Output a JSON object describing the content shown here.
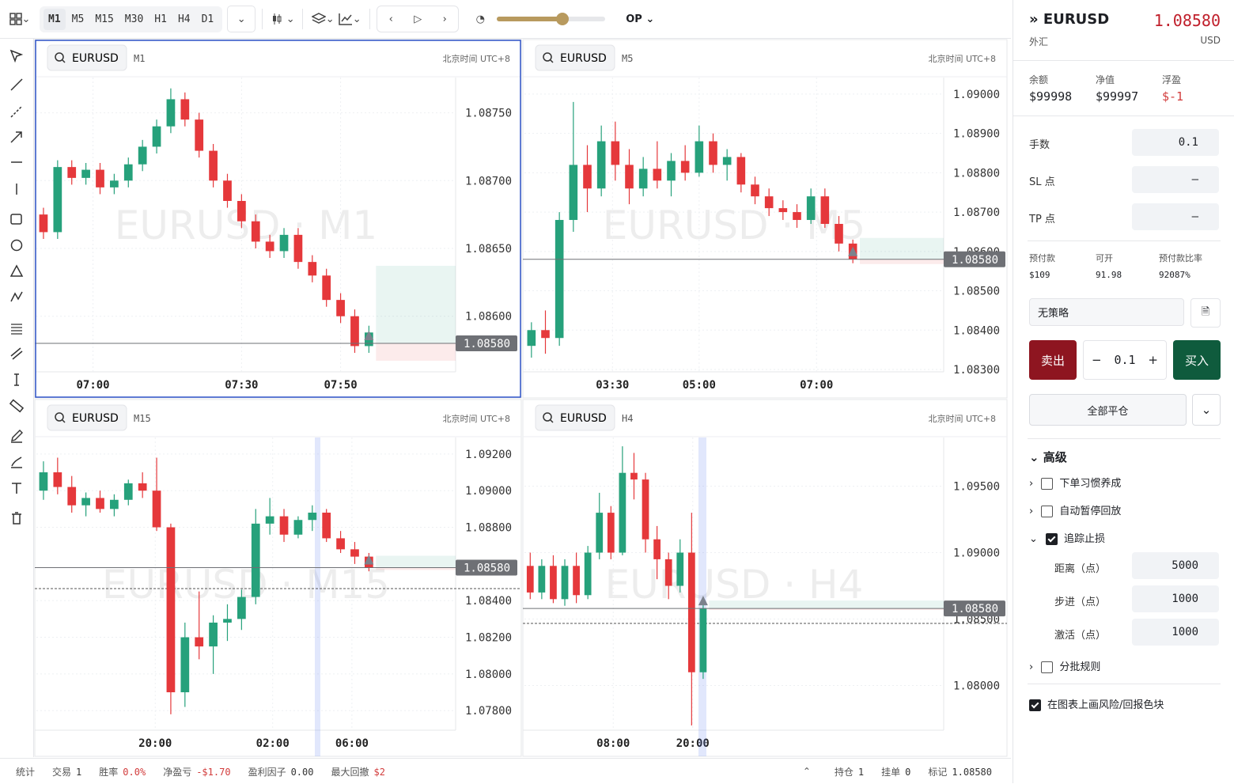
{
  "toolbar": {
    "timeframes": [
      "M1",
      "M5",
      "M15",
      "M30",
      "H1",
      "H4",
      "D1"
    ],
    "active": "M1",
    "speed_label": "OP"
  },
  "chart_data": [
    {
      "type": "candlestick",
      "active": true,
      "symbol": "EURUSD",
      "timeframe": "M1",
      "timezone": "北京时间 UTC+8",
      "watermark": "EURUSD · M1",
      "ylim": [
        1.08559,
        1.08776
      ],
      "yticks": [
        {
          "value": 1.0875,
          "label": "1.08750"
        },
        {
          "value": 1.087,
          "label": "1.08700"
        },
        {
          "value": 1.0865,
          "label": "1.08650"
        },
        {
          "value": 1.086,
          "label": "1.08600"
        }
      ],
      "xticks": [
        {
          "value": 3.5,
          "label": "07:00"
        },
        {
          "value": 14,
          "label": "07:30"
        },
        {
          "value": 21,
          "label": "07:50"
        }
      ],
      "price_line": {
        "value": 1.0858,
        "label": "1.08580"
      },
      "up_color": "#26a17b",
      "down_color": "#e5383b",
      "candles": [
        [
          1.08675,
          1.0868,
          1.08657,
          1.08662
        ],
        [
          1.08662,
          1.08715,
          1.08657,
          1.0871
        ],
        [
          1.0871,
          1.08715,
          1.08697,
          1.08702
        ],
        [
          1.08702,
          1.08713,
          1.08697,
          1.08708
        ],
        [
          1.08708,
          1.08713,
          1.0869,
          1.08695
        ],
        [
          1.08695,
          1.08705,
          1.0869,
          1.087
        ],
        [
          1.087,
          1.08717,
          1.08695,
          1.08712
        ],
        [
          1.08712,
          1.0873,
          1.08707,
          1.08725
        ],
        [
          1.08725,
          1.08745,
          1.0872,
          1.0874
        ],
        [
          1.0874,
          1.08768,
          1.08735,
          1.0876
        ],
        [
          1.0876,
          1.08765,
          1.0874,
          1.08745
        ],
        [
          1.08745,
          1.0875,
          1.08717,
          1.08722
        ],
        [
          1.08722,
          1.08727,
          1.08695,
          1.087
        ],
        [
          1.087,
          1.08705,
          1.0868,
          1.08685
        ],
        [
          1.08685,
          1.0869,
          1.08665,
          1.0867
        ],
        [
          1.0867,
          1.08675,
          1.0865,
          1.08655
        ],
        [
          1.08655,
          1.0866,
          1.08643,
          1.08648
        ],
        [
          1.08648,
          1.08665,
          1.08643,
          1.0866
        ],
        [
          1.0866,
          1.08665,
          1.08635,
          1.0864
        ],
        [
          1.0864,
          1.08645,
          1.08625,
          1.0863
        ],
        [
          1.0863,
          1.08635,
          1.08607,
          1.08612
        ],
        [
          1.08612,
          1.08617,
          1.08595,
          1.086
        ],
        [
          1.086,
          1.08605,
          1.08573,
          1.08578
        ],
        [
          1.08578,
          1.08593,
          1.08573,
          1.08588
        ]
      ]
    },
    {
      "type": "candlestick",
      "active": false,
      "symbol": "EURUSD",
      "timeframe": "M5",
      "timezone": "北京时间 UTC+8",
      "watermark": "EURUSD · M5",
      "ylim": [
        1.08294,
        1.09042
      ],
      "yticks": [
        {
          "value": 1.09,
          "label": "1.09000"
        },
        {
          "value": 1.089,
          "label": "1.08900"
        },
        {
          "value": 1.088,
          "label": "1.08800"
        },
        {
          "value": 1.087,
          "label": "1.08700"
        },
        {
          "value": 1.086,
          "label": "1.08600"
        },
        {
          "value": 1.085,
          "label": "1.08500"
        },
        {
          "value": 1.084,
          "label": "1.08400"
        },
        {
          "value": 1.083,
          "label": "1.08300"
        }
      ],
      "xticks": [
        {
          "value": 5.8,
          "label": "03:30"
        },
        {
          "value": 12,
          "label": "05:00"
        },
        {
          "value": 20.4,
          "label": "07:00"
        }
      ],
      "price_line": {
        "value": 1.0858,
        "label": "1.08580"
      },
      "up_color": "#26a17b",
      "down_color": "#e5383b",
      "candles": [
        [
          1.0836,
          1.0842,
          1.0833,
          1.084
        ],
        [
          1.084,
          1.0845,
          1.0834,
          1.0838
        ],
        [
          1.0838,
          1.087,
          1.0836,
          1.0868
        ],
        [
          1.0868,
          1.0898,
          1.0865,
          1.0882
        ],
        [
          1.0882,
          1.0887,
          1.087,
          1.0876
        ],
        [
          1.0876,
          1.0892,
          1.0874,
          1.0888
        ],
        [
          1.0888,
          1.0893,
          1.0878,
          1.0882
        ],
        [
          1.0882,
          1.0886,
          1.0872,
          1.0876
        ],
        [
          1.0876,
          1.0884,
          1.0874,
          1.0881
        ],
        [
          1.0881,
          1.0888,
          1.0876,
          1.0878
        ],
        [
          1.0878,
          1.0885,
          1.0874,
          1.0883
        ],
        [
          1.0883,
          1.0887,
          1.0878,
          1.088
        ],
        [
          1.088,
          1.0892,
          1.0879,
          1.0888
        ],
        [
          1.0888,
          1.089,
          1.088,
          1.0882
        ],
        [
          1.0882,
          1.0886,
          1.0878,
          1.0884
        ],
        [
          1.0884,
          1.0885,
          1.0875,
          1.0877
        ],
        [
          1.0877,
          1.0879,
          1.0872,
          1.0874
        ],
        [
          1.0874,
          1.0876,
          1.0869,
          1.0871
        ],
        [
          1.0871,
          1.0873,
          1.0868,
          1.087
        ],
        [
          1.087,
          1.0872,
          1.0866,
          1.0868
        ],
        [
          1.0868,
          1.0876,
          1.0867,
          1.0874
        ],
        [
          1.0874,
          1.0876,
          1.0866,
          1.0867
        ],
        [
          1.0867,
          1.0869,
          1.086,
          1.0862
        ],
        [
          1.0862,
          1.0863,
          1.0857,
          1.0858
        ]
      ]
    },
    {
      "type": "candlestick",
      "active": false,
      "symbol": "EURUSD",
      "timeframe": "M15",
      "timezone": "北京时间 UTC+8",
      "watermark": "EURUSD · M15",
      "ylim": [
        1.07693,
        1.0929
      ],
      "yticks": [
        {
          "value": 1.092,
          "label": "1.09200"
        },
        {
          "value": 1.09,
          "label": "1.09000"
        },
        {
          "value": 1.088,
          "label": "1.08800"
        },
        {
          "value": 1.084,
          "label": "1.08400"
        },
        {
          "value": 1.082,
          "label": "1.08200"
        },
        {
          "value": 1.08,
          "label": "1.08000"
        },
        {
          "value": 1.078,
          "label": "1.07800"
        }
      ],
      "xticks": [
        {
          "value": 7.9,
          "label": "20:00"
        },
        {
          "value": 16.2,
          "label": "02:00"
        },
        {
          "value": 21.8,
          "label": "06:00"
        }
      ],
      "price_line": {
        "value": 1.0858,
        "label": "1.08580"
      },
      "up_color": "#26a17b",
      "down_color": "#e5383b",
      "candles": [
        [
          1.09,
          1.0916,
          1.0895,
          1.091
        ],
        [
          1.091,
          1.0918,
          1.0898,
          1.0902
        ],
        [
          1.0902,
          1.0908,
          1.0888,
          1.0892
        ],
        [
          1.0892,
          1.0899,
          1.0886,
          1.0896
        ],
        [
          1.0896,
          1.09,
          1.0888,
          1.089
        ],
        [
          1.089,
          1.0898,
          1.0886,
          1.0895
        ],
        [
          1.0895,
          1.0906,
          1.0892,
          1.0904
        ],
        [
          1.0904,
          1.091,
          1.0896,
          1.09
        ],
        [
          1.09,
          1.0918,
          1.0878,
          1.088
        ],
        [
          1.088,
          1.0882,
          1.0778,
          1.079
        ],
        [
          1.079,
          1.0828,
          1.0782,
          1.082
        ],
        [
          1.082,
          1.0845,
          1.0808,
          1.0815
        ],
        [
          1.0815,
          1.0832,
          1.08,
          1.0828
        ],
        [
          1.0828,
          1.0838,
          1.0818,
          1.083
        ],
        [
          1.083,
          1.0846,
          1.0824,
          1.0842
        ],
        [
          1.0842,
          1.089,
          1.0838,
          1.0882
        ],
        [
          1.0882,
          1.0896,
          1.0876,
          1.0886
        ],
        [
          1.0886,
          1.089,
          1.0872,
          1.0876
        ],
        [
          1.0876,
          1.0886,
          1.0874,
          1.0884
        ],
        [
          1.0884,
          1.0892,
          1.0878,
          1.0888
        ],
        [
          1.0888,
          1.089,
          1.0872,
          1.0874
        ],
        [
          1.0874,
          1.0878,
          1.0866,
          1.0868
        ],
        [
          1.0868,
          1.0872,
          1.086,
          1.0864
        ],
        [
          1.0864,
          1.0866,
          1.0856,
          1.0858
        ]
      ]
    },
    {
      "type": "candlestick",
      "active": false,
      "symbol": "EURUSD",
      "timeframe": "H4",
      "timezone": "北京时间 UTC+8",
      "watermark": "EURUSD · H4",
      "ylim": [
        1.07664,
        1.09866
      ],
      "yticks": [
        {
          "value": 1.095,
          "label": "1.09500"
        },
        {
          "value": 1.09,
          "label": "1.09000"
        },
        {
          "value": 1.085,
          "label": "1.08500"
        },
        {
          "value": 1.08,
          "label": "1.08000"
        }
      ],
      "xticks": [
        {
          "value": 7.2,
          "label": "08:00"
        },
        {
          "value": 14.1,
          "label": "20:00"
        }
      ],
      "price_line": {
        "value": 1.0858,
        "label": "1.08580"
      },
      "up_color": "#26a17b",
      "down_color": "#e5383b",
      "candles": [
        [
          1.089,
          1.09,
          1.0865,
          1.087
        ],
        [
          1.087,
          1.0895,
          1.0865,
          1.089
        ],
        [
          1.089,
          1.0898,
          1.0862,
          1.0865
        ],
        [
          1.0865,
          1.0895,
          1.086,
          1.089
        ],
        [
          1.089,
          1.09,
          1.0862,
          1.0868
        ],
        [
          1.0868,
          1.0905,
          1.0865,
          1.09
        ],
        [
          1.09,
          1.0945,
          1.0895,
          1.093
        ],
        [
          1.093,
          1.0935,
          1.0895,
          1.09
        ],
        [
          1.09,
          1.098,
          1.0898,
          1.096
        ],
        [
          1.096,
          1.0975,
          1.094,
          1.0955
        ],
        [
          1.0955,
          1.096,
          1.09,
          1.091
        ],
        [
          1.091,
          1.092,
          1.088,
          1.0895
        ],
        [
          1.0895,
          1.09,
          1.0865,
          1.0875
        ],
        [
          1.0875,
          1.091,
          1.087,
          1.09
        ],
        [
          1.09,
          1.093,
          1.077,
          1.081
        ],
        [
          1.081,
          1.0865,
          1.0805,
          1.0858
        ]
      ]
    }
  ],
  "sidebar": {
    "symbol": "EURUSD",
    "price": "1.08580",
    "market": "外汇",
    "currency": "USD",
    "account": [
      {
        "label": "余额",
        "value": "$99998",
        "negative": false
      },
      {
        "label": "净值",
        "value": "$99997",
        "negative": false
      },
      {
        "label": "浮盈",
        "value": "$-1",
        "negative": true
      }
    ],
    "inputs": [
      {
        "label": "手数",
        "value": "0.1"
      },
      {
        "label": "SL 点",
        "value": "–"
      },
      {
        "label": "TP 点",
        "value": "–"
      }
    ],
    "margin": [
      {
        "label": "预付款",
        "value": "$109"
      },
      {
        "label": "可开",
        "value": "91.98"
      },
      {
        "label": "预付款比率",
        "value": "92087%"
      }
    ],
    "strategy": "无策略",
    "sell": "卖出",
    "quantity": "0.1",
    "buy": "买入",
    "close_all": "全部平仓",
    "advanced": "高级",
    "options": [
      {
        "label": "下单习惯养成",
        "checked": false
      },
      {
        "label": "自动暂停回放",
        "checked": false
      },
      {
        "label": "追踪止损",
        "checked": true
      }
    ],
    "trailing": [
      {
        "label": "距离（点）",
        "value": "5000"
      },
      {
        "label": "步进（点）",
        "value": "1000"
      },
      {
        "label": "激活（点）",
        "value": "1000"
      }
    ],
    "split": {
      "label": "分批规则",
      "checked": false
    },
    "draw_risk": {
      "label": "在图表上画风险/回报色块",
      "checked": true
    }
  },
  "status_bar": {
    "title": "统计",
    "left": [
      {
        "label": "交易",
        "value": "1",
        "negative": false
      },
      {
        "label": "胜率",
        "value": "0.0%",
        "negative": true
      },
      {
        "label": "净盈亏",
        "value": "-$1.70",
        "negative": true
      },
      {
        "label": "盈利因子",
        "value": "0.00",
        "negative": false
      },
      {
        "label": "最大回撤",
        "value": "$2",
        "negative": true
      }
    ],
    "right": [
      {
        "label": "持仓",
        "value": "1"
      },
      {
        "label": "挂单",
        "value": "0"
      },
      {
        "label": "标记",
        "value": "1.08580"
      }
    ]
  }
}
